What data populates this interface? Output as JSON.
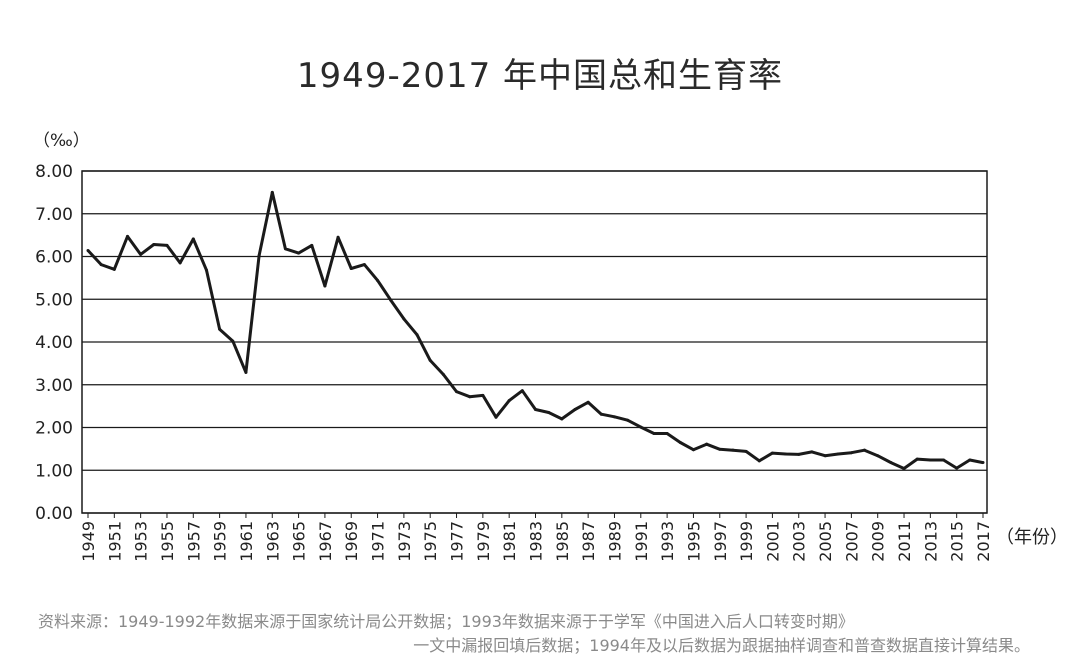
{
  "title": "1949-2017 年中国总和生育率",
  "source_line1": "资料来源：1949-1992年数据来源于国家统计局公开数据；1993年数据来源于于学军《中国进入后人口转变时期》",
  "source_line2": "一文中漏报回填后数据；1994年及以后数据为跟据抽样调查和普查数据直接计算结果。",
  "chart_data": {
    "type": "line",
    "title": "1949-2017 年中国总和生育率",
    "xlabel": "（年份）",
    "ylabel": "（‰）",
    "ylim": [
      0,
      8
    ],
    "yticks": [
      "0.00",
      "1.00",
      "2.00",
      "3.00",
      "4.00",
      "5.00",
      "6.00",
      "7.00",
      "8.00"
    ],
    "xtick_labels": [
      "1949",
      "1951",
      "1953",
      "1955",
      "1957",
      "1959",
      "1961",
      "1963",
      "1965",
      "1967",
      "1969",
      "1971",
      "1973",
      "1975",
      "1977",
      "1979",
      "1981",
      "1983",
      "1985",
      "1987",
      "1989",
      "1991",
      "1993",
      "1995",
      "1997",
      "1999",
      "2001",
      "2003",
      "2005",
      "2007",
      "2009",
      "2011",
      "2013",
      "2015",
      "2017"
    ],
    "grid": "horizontal",
    "line_color": "#1a1a1a",
    "series": [
      {
        "x": [
          1949,
          1950,
          1951,
          1952,
          1953,
          1954,
          1955,
          1956,
          1957,
          1958,
          1959,
          1960,
          1961,
          1962,
          1963,
          1964,
          1965,
          1966,
          1967,
          1968,
          1969,
          1970,
          1971,
          1972,
          1973,
          1974,
          1975,
          1976,
          1977,
          1978,
          1979,
          1980,
          1981,
          1982,
          1983,
          1984,
          1985,
          1986,
          1987,
          1988,
          1989,
          1990,
          1991,
          1992,
          1993,
          1994,
          1995,
          1996,
          1997,
          1998,
          1999,
          2000,
          2001,
          2002,
          2003,
          2004,
          2005,
          2006,
          2007,
          2008,
          2009,
          2010,
          2011,
          2012,
          2013,
          2014,
          2015,
          2016,
          2017
        ],
        "values": [
          6.14,
          5.81,
          5.7,
          6.47,
          6.05,
          6.28,
          6.26,
          5.85,
          6.41,
          5.68,
          4.3,
          4.02,
          3.29,
          6.02,
          7.5,
          6.18,
          6.08,
          6.26,
          5.31,
          6.45,
          5.72,
          5.81,
          5.44,
          4.98,
          4.54,
          4.17,
          3.57,
          3.24,
          2.84,
          2.72,
          2.75,
          2.24,
          2.63,
          2.86,
          2.42,
          2.35,
          2.2,
          2.42,
          2.59,
          2.31,
          2.25,
          2.17,
          2.01,
          1.86,
          1.86,
          1.65,
          1.48,
          1.61,
          1.49,
          1.47,
          1.44,
          1.22,
          1.4,
          1.38,
          1.37,
          1.43,
          1.34,
          1.38,
          1.41,
          1.47,
          1.34,
          1.18,
          1.04,
          1.26,
          1.24,
          1.24,
          1.05,
          1.24,
          1.18
        ]
      }
    ]
  }
}
